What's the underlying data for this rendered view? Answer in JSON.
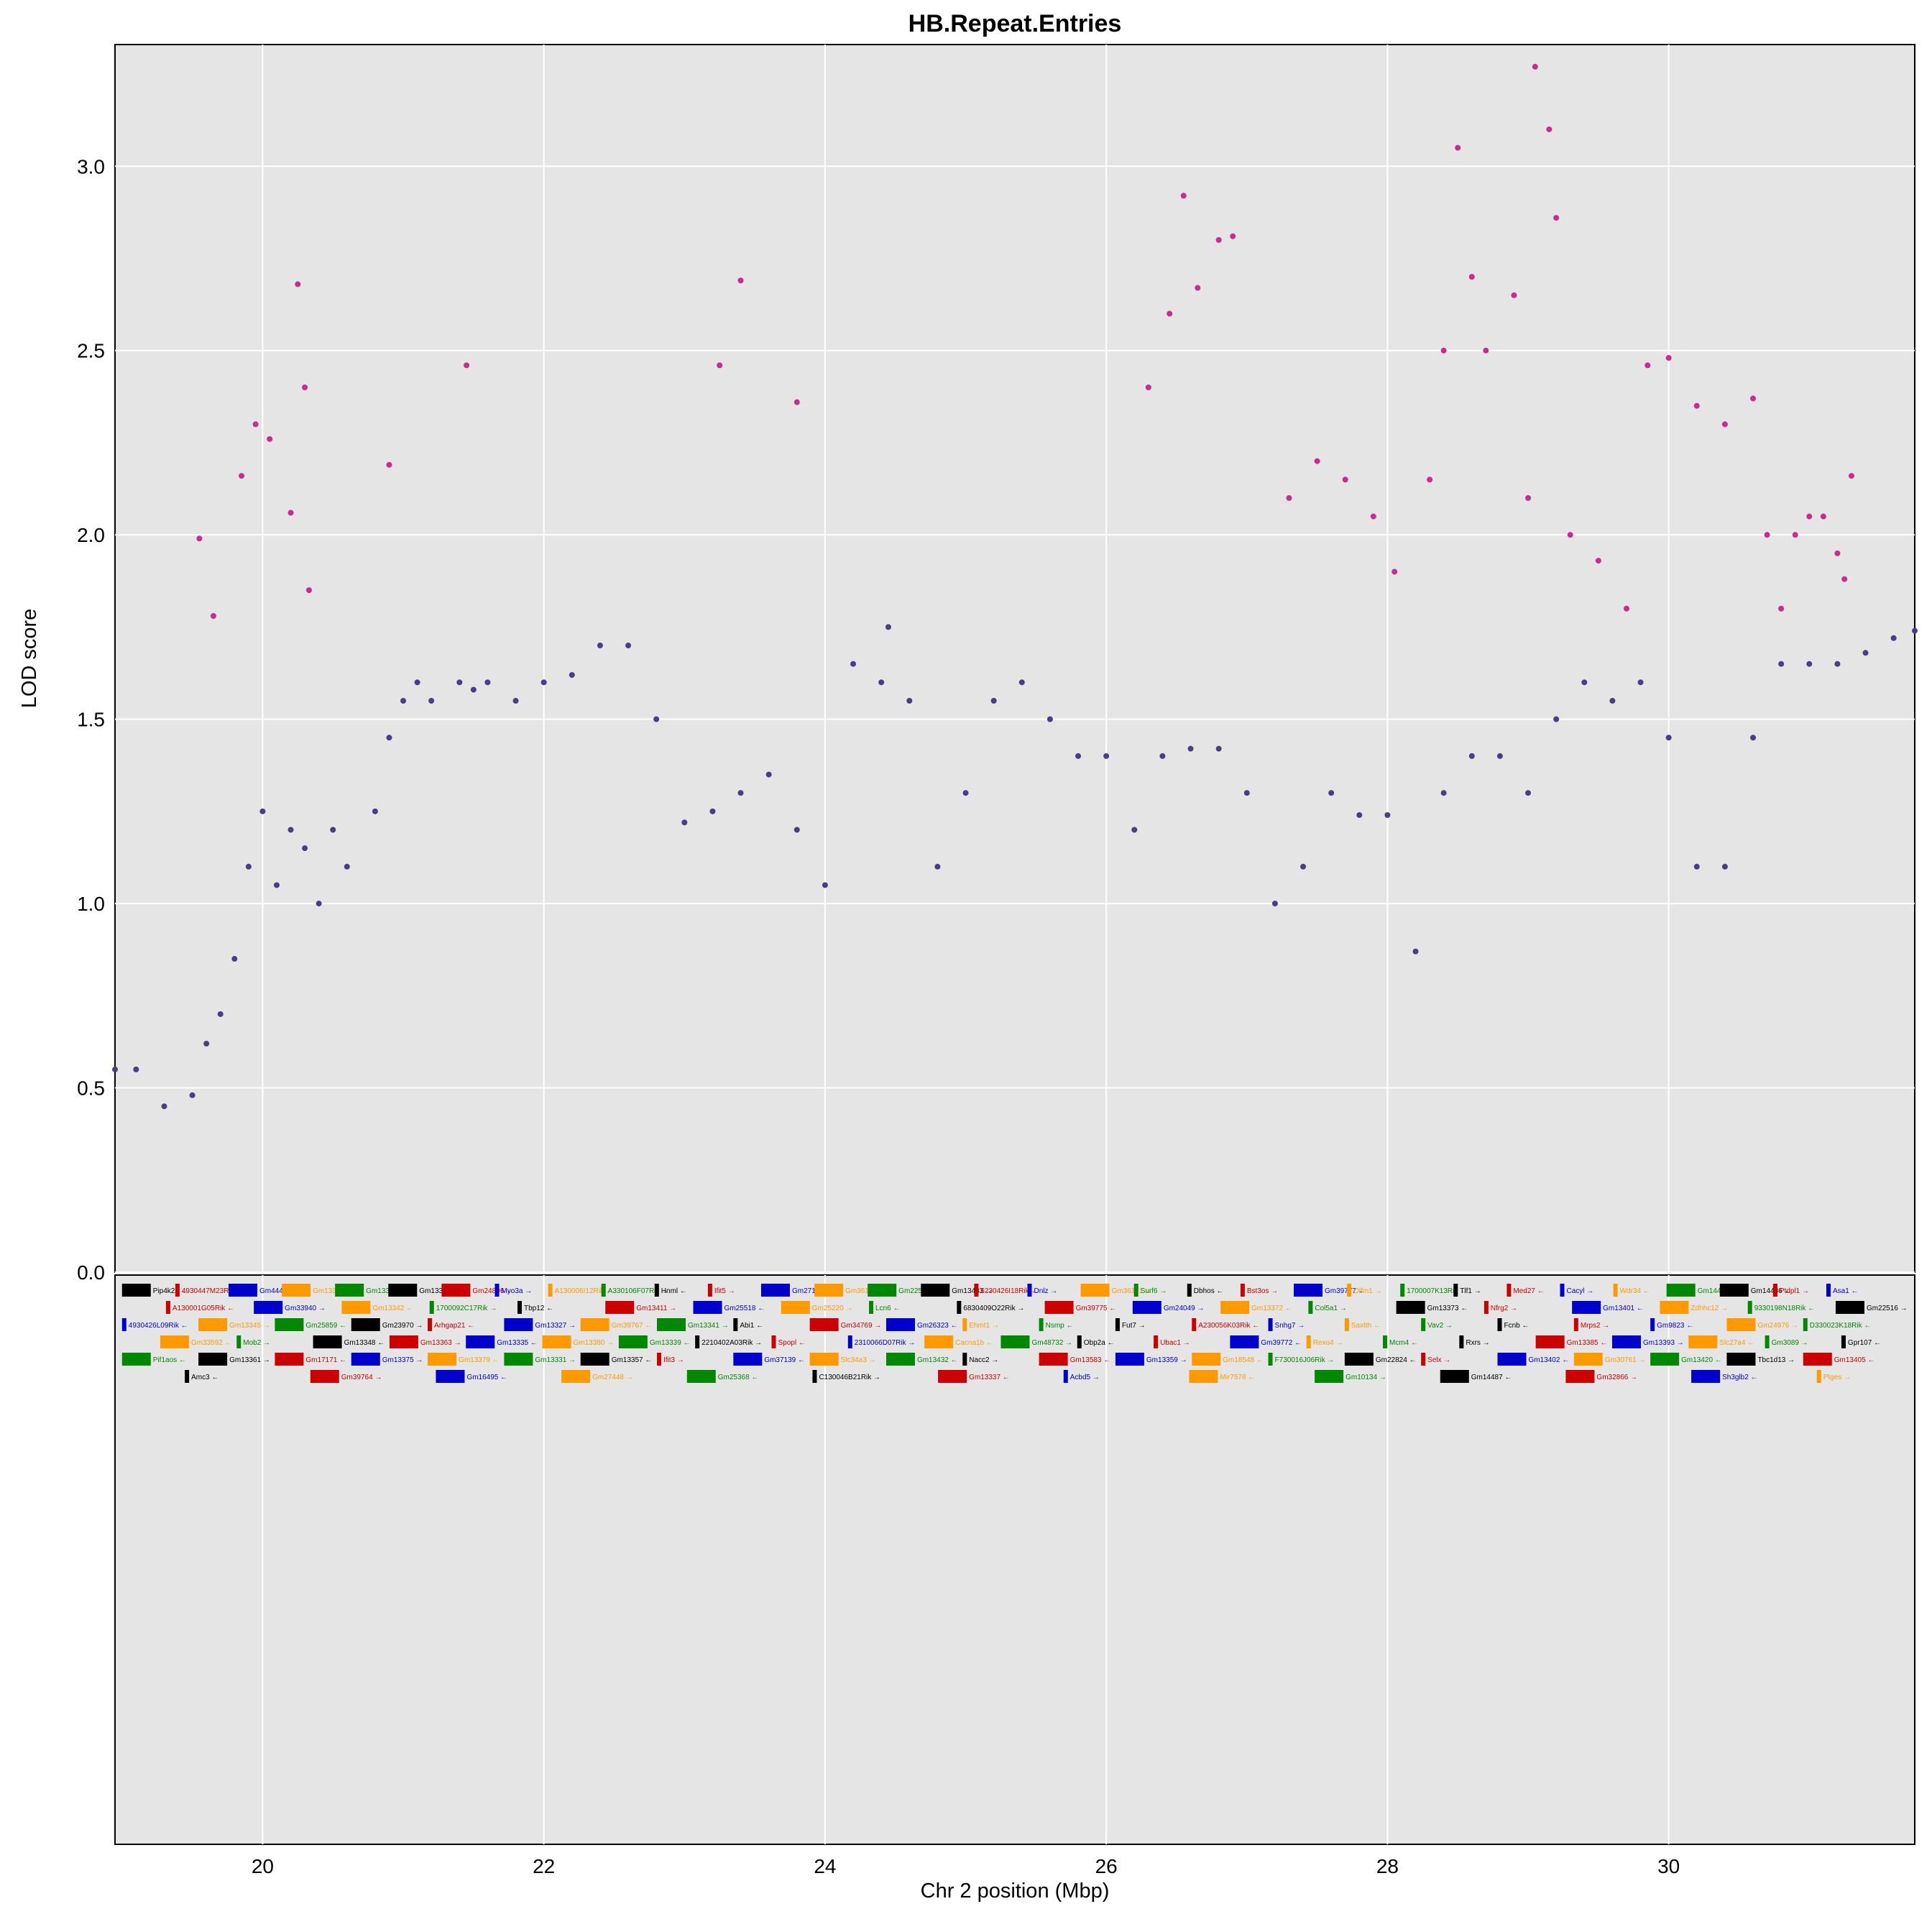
{
  "chart_data": {
    "type": "scatter",
    "title": "HB.Repeat.Entries",
    "xlabel": "Chr 2 position (Mbp)",
    "ylabel": "LOD score",
    "xlim": [
      18.95,
      31.75
    ],
    "ylim": [
      0.0,
      3.33
    ],
    "x_ticks": [
      20,
      22,
      24,
      26,
      28,
      30
    ],
    "y_ticks": [
      0.0,
      0.5,
      1.0,
      1.5,
      2.0,
      2.5,
      3.0
    ],
    "grid": true,
    "threshold_note": "points with LOD above ~1.75 drawn in magenta",
    "colors": {
      "main": "#483d8b",
      "significant": "#cc2a8c",
      "panel_bg": "#e5e5e5",
      "grid": "#ffffff"
    },
    "series": [
      {
        "values": [
          [
            18.95,
            0.55
          ],
          [
            19.1,
            0.55
          ],
          [
            19.3,
            0.45
          ],
          [
            19.5,
            0.48
          ],
          [
            19.6,
            0.62
          ],
          [
            19.7,
            0.7
          ],
          [
            19.8,
            0.85
          ],
          [
            19.9,
            1.1
          ],
          [
            20.0,
            1.25
          ],
          [
            20.1,
            1.05
          ],
          [
            20.2,
            1.2
          ],
          [
            20.3,
            1.15
          ],
          [
            20.4,
            1.0
          ],
          [
            20.5,
            1.2
          ],
          [
            20.6,
            1.1
          ],
          [
            20.8,
            1.25
          ],
          [
            20.9,
            1.45
          ],
          [
            21.0,
            1.55
          ],
          [
            21.1,
            1.6
          ],
          [
            21.2,
            1.55
          ],
          [
            21.4,
            1.6
          ],
          [
            21.5,
            1.58
          ],
          [
            21.6,
            1.6
          ],
          [
            21.8,
            1.55
          ],
          [
            22.0,
            1.6
          ],
          [
            22.2,
            1.62
          ],
          [
            22.4,
            1.7
          ],
          [
            22.6,
            1.7
          ],
          [
            22.8,
            1.5
          ],
          [
            23.0,
            1.22
          ],
          [
            23.2,
            1.25
          ],
          [
            23.4,
            1.3
          ],
          [
            23.6,
            1.35
          ],
          [
            23.8,
            1.2
          ],
          [
            24.0,
            1.05
          ],
          [
            24.2,
            1.65
          ],
          [
            24.4,
            1.6
          ],
          [
            24.6,
            1.55
          ],
          [
            24.8,
            1.1
          ],
          [
            25.0,
            1.3
          ],
          [
            25.2,
            1.55
          ],
          [
            25.4,
            1.6
          ],
          [
            25.6,
            1.5
          ],
          [
            25.8,
            1.4
          ],
          [
            26.0,
            1.4
          ],
          [
            26.2,
            1.2
          ],
          [
            26.4,
            1.4
          ],
          [
            26.6,
            1.42
          ],
          [
            26.8,
            1.42
          ],
          [
            27.0,
            1.3
          ],
          [
            27.2,
            1.0
          ],
          [
            27.4,
            1.1
          ],
          [
            27.6,
            1.3
          ],
          [
            27.8,
            1.24
          ],
          [
            28.0,
            1.24
          ],
          [
            28.2,
            0.87
          ],
          [
            28.4,
            1.3
          ],
          [
            28.6,
            1.4
          ],
          [
            28.8,
            1.4
          ],
          [
            29.0,
            1.3
          ],
          [
            29.2,
            1.5
          ],
          [
            29.4,
            1.6
          ],
          [
            29.6,
            1.55
          ],
          [
            29.8,
            1.6
          ],
          [
            30.0,
            1.45
          ],
          [
            30.2,
            1.1
          ],
          [
            30.4,
            1.1
          ],
          [
            30.6,
            1.45
          ],
          [
            30.8,
            1.65
          ],
          [
            31.0,
            1.65
          ],
          [
            31.2,
            1.65
          ],
          [
            31.4,
            1.68
          ],
          [
            31.6,
            1.72
          ],
          [
            31.75,
            1.74
          ]
        ]
      },
      {
        "values": [
          [
            19.55,
            1.99
          ],
          [
            19.65,
            1.78
          ],
          [
            19.85,
            2.16
          ],
          [
            19.95,
            2.3
          ],
          [
            20.05,
            2.26
          ],
          [
            20.2,
            2.06
          ],
          [
            20.25,
            2.68
          ],
          [
            20.3,
            2.4
          ],
          [
            20.33,
            1.85
          ],
          [
            20.9,
            2.19
          ],
          [
            21.45,
            2.46
          ],
          [
            23.25,
            2.46
          ],
          [
            23.4,
            2.69
          ],
          [
            23.8,
            2.36
          ],
          [
            24.45,
            1.75
          ],
          [
            26.3,
            2.4
          ],
          [
            26.45,
            2.6
          ],
          [
            26.55,
            2.92
          ],
          [
            26.65,
            2.67
          ],
          [
            26.8,
            2.8
          ],
          [
            26.9,
            2.81
          ],
          [
            27.3,
            2.1
          ],
          [
            27.5,
            2.2
          ],
          [
            27.7,
            2.15
          ],
          [
            27.9,
            2.05
          ],
          [
            28.05,
            1.9
          ],
          [
            28.3,
            2.15
          ],
          [
            28.4,
            2.5
          ],
          [
            28.5,
            3.05
          ],
          [
            28.6,
            2.7
          ],
          [
            28.7,
            2.5
          ],
          [
            28.9,
            2.65
          ],
          [
            29.0,
            2.1
          ],
          [
            29.05,
            3.27
          ],
          [
            29.15,
            3.1
          ],
          [
            29.2,
            2.86
          ],
          [
            29.3,
            2.0
          ],
          [
            29.5,
            1.93
          ],
          [
            29.7,
            1.8
          ],
          [
            29.85,
            2.46
          ],
          [
            30.0,
            2.48
          ],
          [
            30.2,
            2.35
          ],
          [
            30.4,
            2.3
          ],
          [
            30.6,
            2.37
          ],
          [
            30.7,
            2.0
          ],
          [
            30.8,
            1.8
          ],
          [
            30.9,
            2.0
          ],
          [
            31.0,
            2.05
          ],
          [
            31.1,
            2.05
          ],
          [
            31.2,
            1.95
          ],
          [
            31.25,
            1.88
          ],
          [
            31.3,
            2.16
          ]
        ]
      }
    ]
  },
  "genes": {
    "rows": [
      [
        "Pip4k2a",
        "4930447M23Rik",
        "Gm44457",
        "Gm13328",
        "Gm13362",
        "Gm13377",
        "Gm24896",
        "Myo3a",
        "A130006I12Rik",
        "A330106F07Rik",
        "Hnml",
        "Ifit5",
        "Gm27193",
        "Gm36147",
        "Gm22572",
        "Gm13433",
        "6230426I18Rik",
        "Dnlz",
        "Gm36171",
        "Surf6",
        "Dbhos",
        "Bst3os",
        "Gm39777",
        "Olfm1",
        "1700007K13Rik",
        "Tlf1",
        "Med27",
        "Cacyl",
        "Wdr34",
        "Gm14471",
        "Gm14486",
        "Ptdpl1",
        "Asa1"
      ],
      [
        "A130001G05Rik",
        "Gm33940",
        "Gm13342",
        "1700092C17Rik",
        "Tbp12",
        "Gm13411",
        "Gm25518",
        "Gm25220",
        "Lcn6",
        "6830409O22Rik",
        "Gm39775",
        "Gm24049",
        "Gm13372",
        "Col5a1",
        "Gm13373",
        "Nfrg2",
        "Gm13401",
        "Zdhhc12",
        "9330198N18Rik",
        "Gm22516"
      ],
      [
        "4930426L09Rik",
        "Gm13345",
        "Gm25859",
        "Gm23970",
        "Arhgap21",
        "Gm13327",
        "Gm39767",
        "Gm13341",
        "Abi1",
        "Gm34769",
        "Gm26323",
        "Ehmt1",
        "Nsmp",
        "Fut7",
        "A230056K03Rik",
        "Snhg7",
        "Saxtth",
        "Vav2",
        "Fcnb",
        "Mrps2",
        "Gm9823",
        "Gm24976",
        "D330023K18Rik"
      ],
      [
        "Gm33592",
        "Mob2",
        "Gm13348",
        "Gm13363",
        "Gm13335",
        "Gm13380",
        "Gm13339",
        "2210402A03Rik",
        "Spopl",
        "2310066D07Rik",
        "Cacna1b",
        "Gm48732",
        "Obp2a",
        "Ubac1",
        "Gm39772",
        "Rexo4",
        "Mcm4",
        "Rxrs",
        "Gm13385",
        "Gm13393",
        "Slc27a4",
        "Gm3089",
        "Gpr107"
      ],
      [
        "Pif1aos",
        "Gm13361",
        "Gm17171",
        "Gm13375",
        "Gm13379",
        "Gm13331",
        "Gm13357",
        "Ifit3",
        "Gm37139",
        "Slc34a3",
        "Gm13432",
        "Nacc2",
        "Gm13583",
        "Gm13359",
        "Gm18548",
        "F730016J06Rik",
        "Gm22824",
        "Selx",
        "Gm13402",
        "Gm30761",
        "Gm13420",
        "Tbc1d13",
        "Gm13405"
      ],
      [
        "Amc3",
        "Gm39764",
        "Gm16495",
        "Gm27448",
        "Gm25368",
        "C130046B21Rik",
        "Gm13337",
        "Acbd5",
        "Mir7578",
        "Gm10134",
        "Gm14487",
        "Gm32866",
        "Sh3glb2",
        "Ptges"
      ]
    ]
  }
}
